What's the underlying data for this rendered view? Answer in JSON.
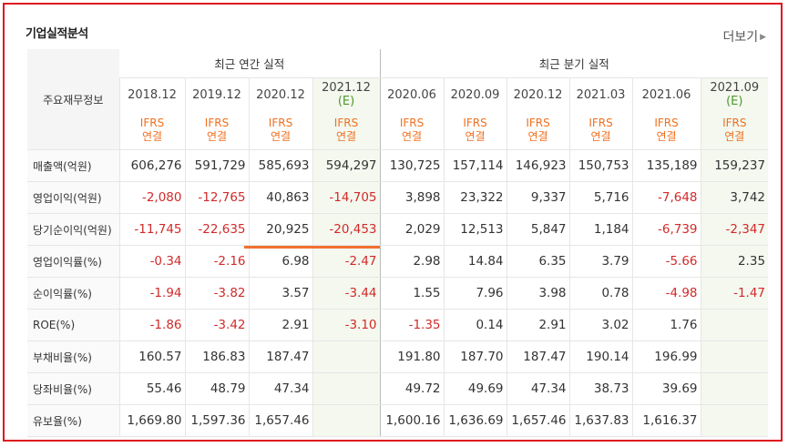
{
  "section_title": "기업실적분석",
  "more_link": "더보기",
  "header": {
    "row_label": "주요재무정보",
    "annual_group": "최근 연간 실적",
    "quarter_group": "최근 분기 실적",
    "ifrs_line1": "IFRS",
    "ifrs_line2": "연결"
  },
  "periods": [
    {
      "label": "2018.12",
      "est": ""
    },
    {
      "label": "2019.12",
      "est": ""
    },
    {
      "label": "2020.12",
      "est": ""
    },
    {
      "label": "2021.12",
      "est": "(E)"
    },
    {
      "label": "2020.06",
      "est": ""
    },
    {
      "label": "2020.09",
      "est": ""
    },
    {
      "label": "2020.12",
      "est": ""
    },
    {
      "label": "2021.03",
      "est": ""
    },
    {
      "label": "2021.06",
      "est": ""
    },
    {
      "label": "2021.09",
      "est": "(E)"
    }
  ],
  "rows": [
    {
      "label": "매출액(억원)",
      "values": [
        "606,276",
        "591,729",
        "585,693",
        "594,297",
        "130,725",
        "157,114",
        "146,923",
        "150,753",
        "135,189",
        "159,237"
      ]
    },
    {
      "label": "영업이익(억원)",
      "values": [
        "-2,080",
        "-12,765",
        "40,863",
        "-14,705",
        "3,898",
        "23,322",
        "9,337",
        "5,716",
        "-7,648",
        "3,742"
      ]
    },
    {
      "label": "당기순이익(억원)",
      "values": [
        "-11,745",
        "-22,635",
        "20,925",
        "-20,453",
        "2,029",
        "12,513",
        "5,847",
        "1,184",
        "-6,739",
        "-2,347"
      ]
    },
    {
      "label": "영업이익률(%)",
      "values": [
        "-0.34",
        "-2.16",
        "6.98",
        "-2.47",
        "2.98",
        "14.84",
        "6.35",
        "3.79",
        "-5.66",
        "2.35"
      ]
    },
    {
      "label": "순이익률(%)",
      "values": [
        "-1.94",
        "-3.82",
        "3.57",
        "-3.44",
        "1.55",
        "7.96",
        "3.98",
        "0.78",
        "-4.98",
        "-1.47"
      ]
    },
    {
      "label": "ROE(%)",
      "values": [
        "-1.86",
        "-3.42",
        "2.91",
        "-3.10",
        "-1.35",
        "0.14",
        "2.91",
        "3.02",
        "1.76",
        ""
      ]
    },
    {
      "label": "부채비율(%)",
      "values": [
        "160.57",
        "186.83",
        "187.47",
        "",
        "191.80",
        "187.70",
        "187.47",
        "190.14",
        "196.99",
        ""
      ]
    },
    {
      "label": "당좌비율(%)",
      "values": [
        "55.46",
        "48.79",
        "47.34",
        "",
        "49.72",
        "49.69",
        "47.34",
        "38.73",
        "39.69",
        ""
      ]
    },
    {
      "label": "유보율(%)",
      "values": [
        "1,669.80",
        "1,597.36",
        "1,657.46",
        "",
        "1,600.16",
        "1,636.69",
        "1,657.46",
        "1,637.83",
        "1,616.37",
        ""
      ]
    }
  ],
  "colors": {
    "negative": "#d22a2a",
    "estimate": "#4c9a2a",
    "ifrs": "#f07020",
    "frame": "#e0141e"
  }
}
